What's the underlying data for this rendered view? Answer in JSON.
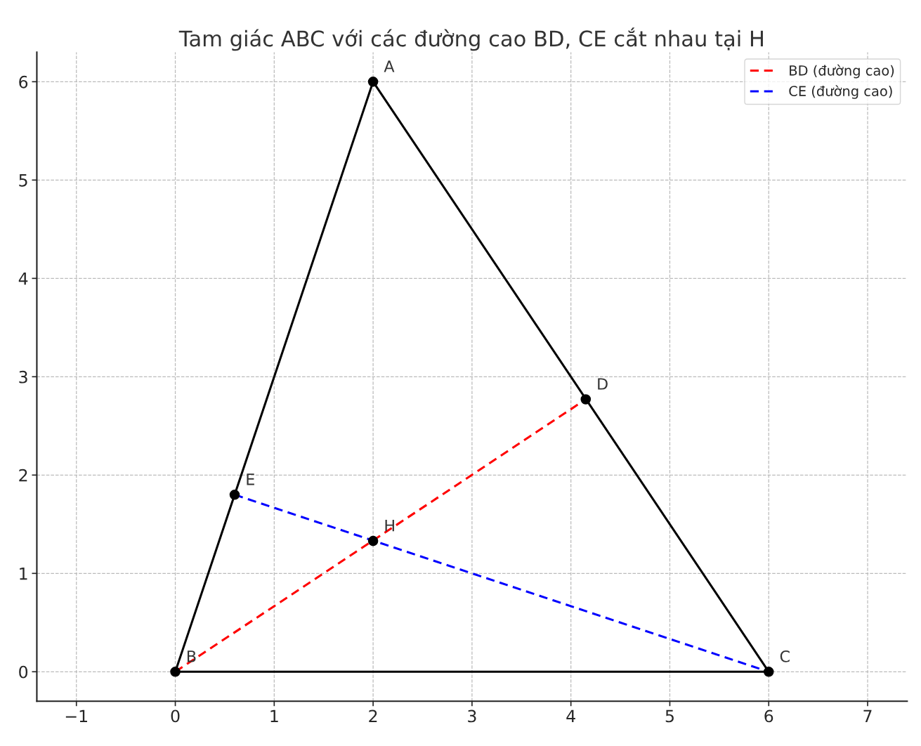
{
  "chart_data": {
    "type": "line",
    "title": "Tam giác ABC với các đường cao BD, CE cắt nhau tại H",
    "series": [
      {
        "color": "#000000",
        "x": [
          0,
          2
        ],
        "values": [
          0,
          6
        ],
        "line_style": "solid"
      },
      {
        "color": "#000000",
        "x": [
          2,
          6
        ],
        "values": [
          6,
          0
        ],
        "line_style": "solid"
      },
      {
        "color": "#000000",
        "x": [
          0,
          6
        ],
        "values": [
          0,
          0
        ],
        "line_style": "solid"
      },
      {
        "name": "BD (đường cao)",
        "color": "#ff0000",
        "x": [
          0,
          4.15
        ],
        "values": [
          0,
          2.77
        ],
        "line_style": "dashed"
      },
      {
        "name": "CE (đường cao)",
        "color": "#0000ff",
        "x": [
          0.6,
          6
        ],
        "values": [
          1.8,
          0
        ],
        "line_style": "dashed"
      },
      {
        "type": "scatter",
        "color": "#000000",
        "x": [
          2,
          0,
          6,
          4.15,
          0.6,
          2
        ],
        "values": [
          6,
          0,
          0,
          2.77,
          1.8,
          1.33
        ],
        "value_labels": [
          "A",
          "B",
          "C",
          "D",
          "E",
          "H"
        ],
        "marker": "circle"
      }
    ],
    "xlim": [
      -1.4,
      7.4
    ],
    "ylim": [
      -0.3,
      6.3
    ],
    "xticks": [
      {
        "value": -1,
        "label": "−1"
      },
      0,
      1,
      2,
      3,
      4,
      5,
      6,
      7
    ],
    "yticks": [
      0,
      1,
      2,
      3,
      4,
      5,
      6
    ],
    "grid": true,
    "legend": "top right"
  }
}
